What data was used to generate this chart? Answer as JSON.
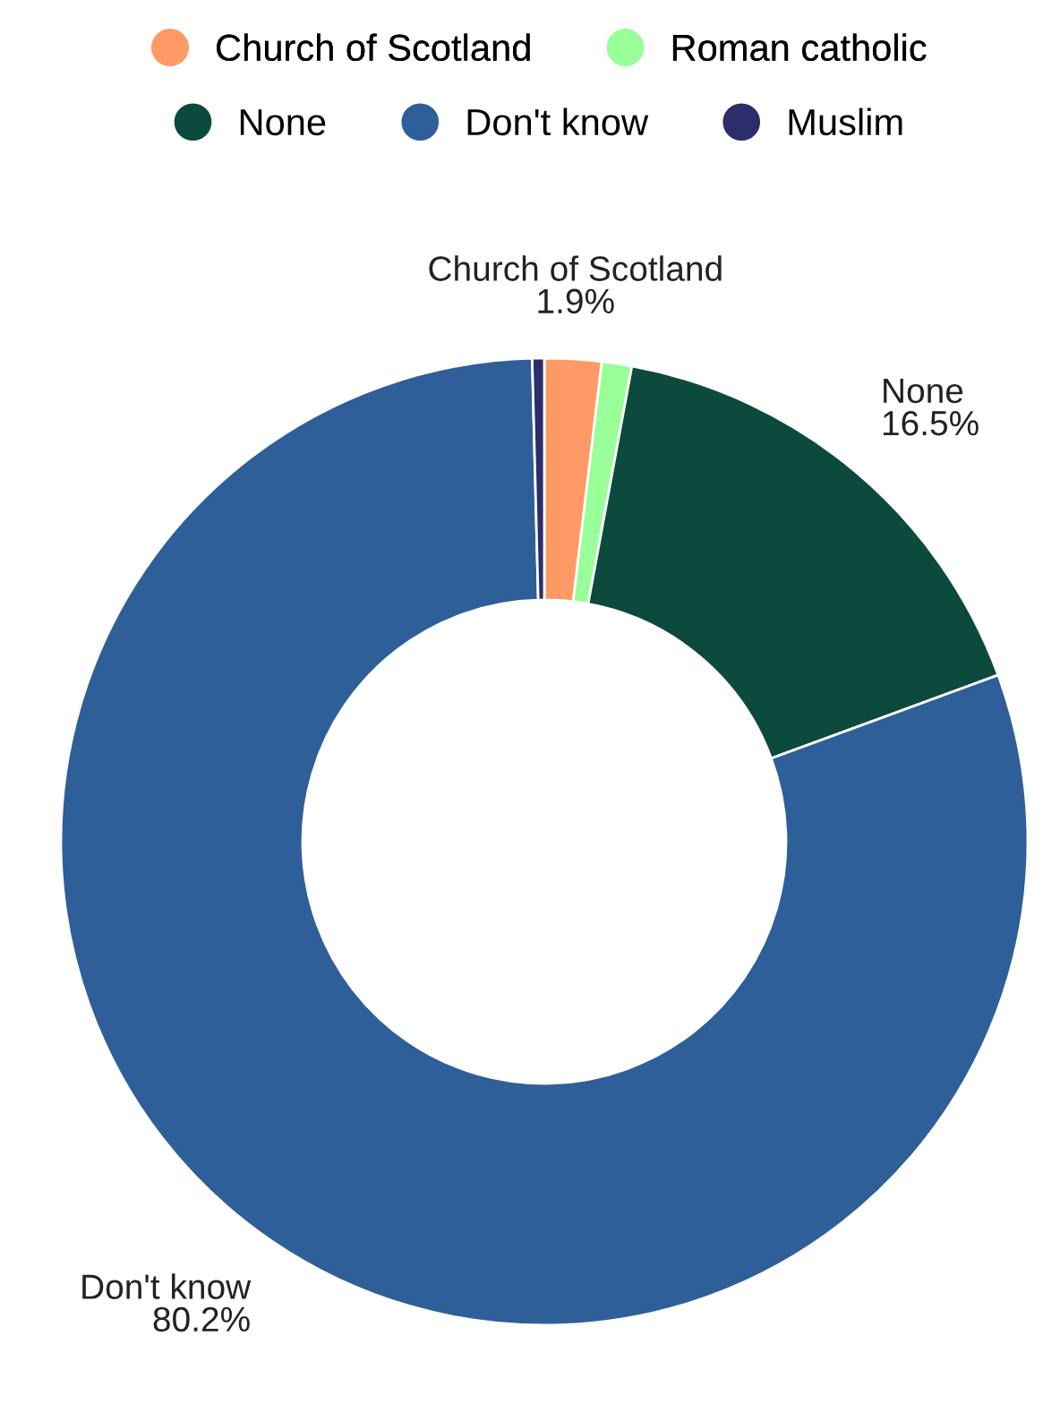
{
  "chart_data": {
    "type": "donut",
    "categories": [
      "Church of Scotland",
      "Roman catholic",
      "None",
      "Don't know",
      "Muslim"
    ],
    "values": [
      1.9,
      1.0,
      16.5,
      80.2,
      0.4
    ],
    "colors": [
      "#ff9966",
      "#99ff99",
      "#0b4a3c",
      "#2e5f99",
      "#2c2e6b"
    ],
    "value_labels": [
      "1.9%",
      null,
      "16.5%",
      "80.2%",
      null
    ],
    "legend": "top"
  }
}
